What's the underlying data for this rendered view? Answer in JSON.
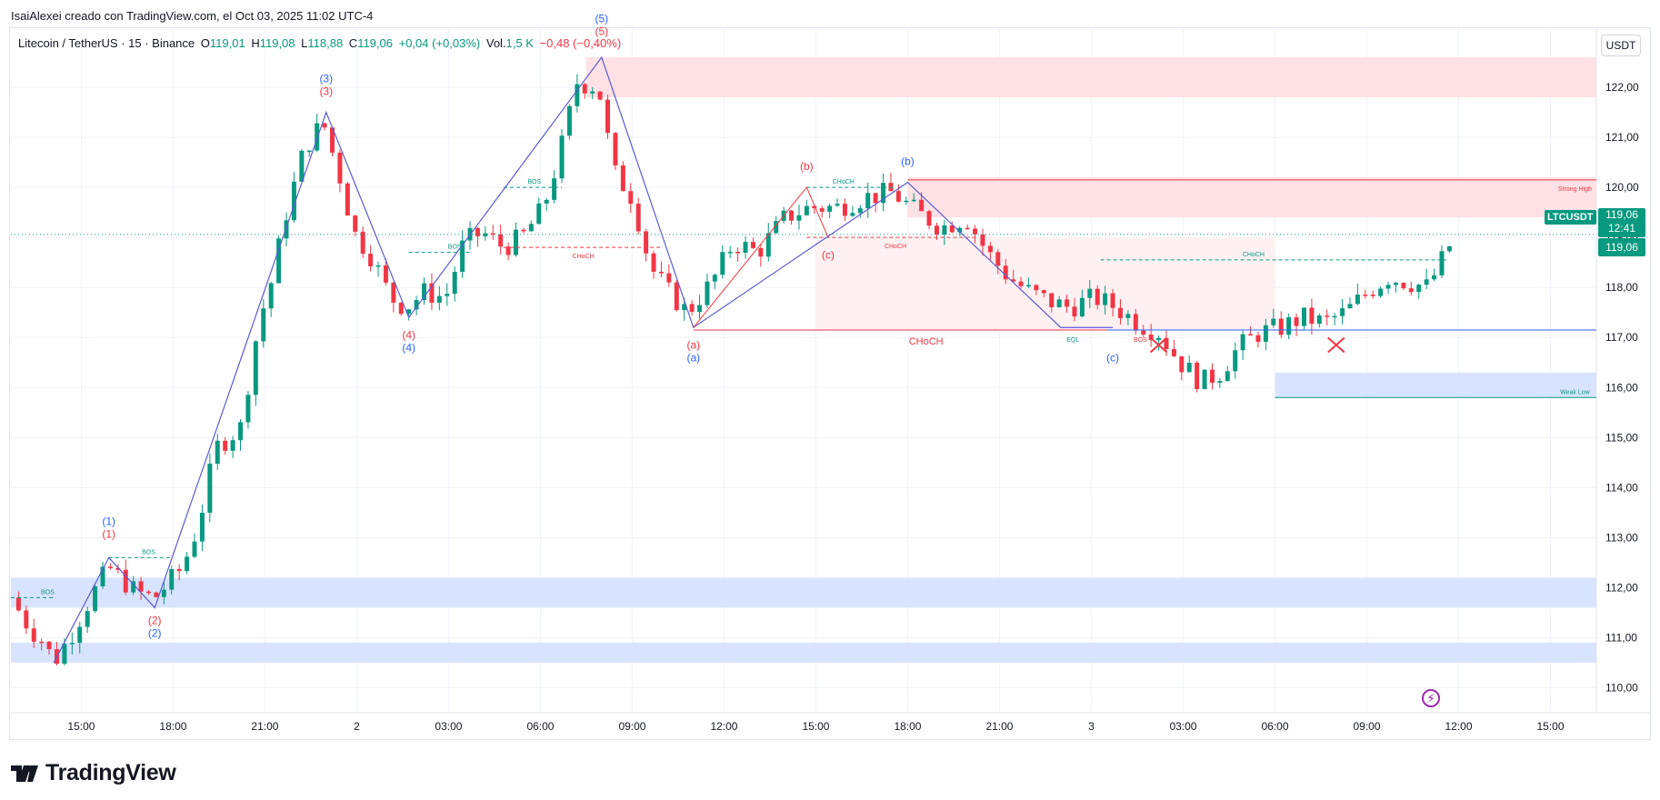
{
  "header": {
    "author_line": "IsaiAlexei creado con TradingView.com, el Oct 03, 2025 11:02 UTC-4"
  },
  "legend": {
    "symbol": "Litecoin / TetherUS · 15 · Binance",
    "o_label": "O",
    "o_value": "119,01",
    "h_label": "H",
    "h_value": "119,08",
    "l_label": "L",
    "l_value": "118,88",
    "c_label": "C",
    "c_value": "119,06",
    "change": "+0,04 (+0,03%)",
    "vol_label": "Vol.",
    "vol_value": "1,5 K",
    "extra": "−0,48 (−0,40%)"
  },
  "currency_button": "USDT",
  "price_labels": {
    "symbol_tag": "LTCUSDT",
    "last_price": "119,06",
    "countdown": "12:41",
    "line_price": "119,06"
  },
  "branding": {
    "logo_text": "TradingView"
  },
  "colors": {
    "up": "#089981",
    "down": "#f23645",
    "blue_wave": "#5b5bd6",
    "wave_blue_label": "#2962ff",
    "wave_red_label": "#f23645",
    "supply_zone": "#fde1e4",
    "demand_zone": "#d8e4ff",
    "grid": "#f0f3fa"
  },
  "chart_data": {
    "type": "candlestick",
    "symbol": "LTCUSDT",
    "timeframe": "15",
    "y_axis": {
      "ticks": [
        110,
        111,
        112,
        113,
        114,
        115,
        116,
        117,
        118,
        119,
        120,
        121,
        122
      ],
      "tick_labels": [
        "110,00",
        "111,00",
        "112,00",
        "113,00",
        "114,00",
        "115,00",
        "116,00",
        "117,00",
        "118,00",
        "119,00",
        "120,00",
        "121,00",
        "122,00"
      ],
      "range": [
        109.5,
        123.2
      ]
    },
    "x_axis": {
      "tick_labels": [
        "15:00",
        "18:00",
        "21:00",
        "2",
        "03:00",
        "06:00",
        "09:00",
        "12:00",
        "15:00",
        "18:00",
        "21:00",
        "3",
        "03:00",
        "06:00",
        "09:00",
        "12:00",
        "15:00"
      ],
      "tick_hours": [
        15,
        18,
        21,
        24,
        27,
        30,
        33,
        36,
        39,
        42,
        45,
        48,
        51,
        54,
        57,
        60,
        63
      ],
      "range_hours": [
        12.7,
        64.5
      ],
      "time_origin": "Oct 01 00:00"
    },
    "price_path": [
      {
        "t": 12.7,
        "p": 111.8
      },
      {
        "t": 13.3,
        "p": 111.2
      },
      {
        "t": 13.8,
        "p": 110.9
      },
      {
        "t": 14.1,
        "p": 110.5
      },
      {
        "t": 14.7,
        "p": 111.1
      },
      {
        "t": 15.4,
        "p": 111.9
      },
      {
        "t": 15.9,
        "p": 112.4
      },
      {
        "t": 16.8,
        "p": 111.9
      },
      {
        "t": 17.4,
        "p": 111.8
      },
      {
        "t": 18.3,
        "p": 112.4
      },
      {
        "t": 18.8,
        "p": 113.2
      },
      {
        "t": 19.4,
        "p": 114.8
      },
      {
        "t": 20.2,
        "p": 115.2
      },
      {
        "t": 20.8,
        "p": 117.3
      },
      {
        "t": 21.2,
        "p": 118.1
      },
      {
        "t": 21.7,
        "p": 119.5
      },
      {
        "t": 22.3,
        "p": 120.8
      },
      {
        "t": 22.9,
        "p": 121.3
      },
      {
        "t": 23.5,
        "p": 120.1
      },
      {
        "t": 23.9,
        "p": 119.1
      },
      {
        "t": 24.5,
        "p": 118.6
      },
      {
        "t": 25.1,
        "p": 117.8
      },
      {
        "t": 25.6,
        "p": 117.6
      },
      {
        "t": 26.2,
        "p": 117.9
      },
      {
        "t": 26.9,
        "p": 117.8
      },
      {
        "t": 27.5,
        "p": 118.9
      },
      {
        "t": 28.1,
        "p": 119.1
      },
      {
        "t": 28.8,
        "p": 118.8
      },
      {
        "t": 29.4,
        "p": 119.0
      },
      {
        "t": 30.1,
        "p": 119.6
      },
      {
        "t": 30.6,
        "p": 120.6
      },
      {
        "t": 31.2,
        "p": 122.1
      },
      {
        "t": 31.9,
        "p": 122.0
      },
      {
        "t": 32.4,
        "p": 120.3
      },
      {
        "t": 33.0,
        "p": 119.8
      },
      {
        "t": 33.6,
        "p": 118.4
      },
      {
        "t": 34.2,
        "p": 117.9
      },
      {
        "t": 34.8,
        "p": 117.5
      },
      {
        "t": 35.6,
        "p": 118.1
      },
      {
        "t": 36.3,
        "p": 118.9
      },
      {
        "t": 37.1,
        "p": 118.7
      },
      {
        "t": 38.0,
        "p": 119.4
      },
      {
        "t": 38.8,
        "p": 119.6
      },
      {
        "t": 39.7,
        "p": 119.6
      },
      {
        "t": 40.6,
        "p": 119.8
      },
      {
        "t": 41.5,
        "p": 119.9
      },
      {
        "t": 42.3,
        "p": 119.5
      },
      {
        "t": 43.1,
        "p": 119.2
      },
      {
        "t": 43.9,
        "p": 119.4
      },
      {
        "t": 44.6,
        "p": 118.7
      },
      {
        "t": 45.3,
        "p": 118.2
      },
      {
        "t": 46.0,
        "p": 117.9
      },
      {
        "t": 46.7,
        "p": 117.7
      },
      {
        "t": 47.3,
        "p": 117.6
      },
      {
        "t": 48.1,
        "p": 117.8
      },
      {
        "t": 48.8,
        "p": 117.6
      },
      {
        "t": 49.5,
        "p": 117.3
      },
      {
        "t": 50.2,
        "p": 117.1
      },
      {
        "t": 50.9,
        "p": 116.5
      },
      {
        "t": 51.6,
        "p": 116.1
      },
      {
        "t": 52.2,
        "p": 116.3
      },
      {
        "t": 52.8,
        "p": 116.8
      },
      {
        "t": 53.5,
        "p": 117.1
      },
      {
        "t": 54.2,
        "p": 117.2
      },
      {
        "t": 54.9,
        "p": 117.4
      },
      {
        "t": 55.6,
        "p": 117.3
      },
      {
        "t": 56.3,
        "p": 117.5
      },
      {
        "t": 57.0,
        "p": 117.9
      },
      {
        "t": 57.7,
        "p": 118.2
      },
      {
        "t": 58.4,
        "p": 118.1
      },
      {
        "t": 59.0,
        "p": 118.0
      },
      {
        "t": 59.5,
        "p": 118.6
      },
      {
        "t": 59.9,
        "p": 119.06
      }
    ],
    "zones": [
      {
        "kind": "supply",
        "t0": 31.5,
        "t1": 64.5,
        "p0": 121.8,
        "p1": 122.6
      },
      {
        "kind": "supply",
        "t0": 42.0,
        "t1": 64.5,
        "p0": 119.4,
        "p1": 120.2
      },
      {
        "kind": "supply-light",
        "t0": 39.0,
        "t1": 54.0,
        "p0": 117.15,
        "p1": 119.0
      },
      {
        "kind": "demand",
        "t0": 12.7,
        "t1": 64.5,
        "p0": 111.6,
        "p1": 112.2
      },
      {
        "kind": "demand",
        "t0": 12.7,
        "t1": 64.5,
        "p0": 110.5,
        "p1": 110.9
      },
      {
        "kind": "demand",
        "t0": 54.0,
        "t1": 64.5,
        "p0": 115.8,
        "p1": 116.3
      }
    ],
    "wave_blue": [
      {
        "t": 14.1,
        "p": 110.5
      },
      {
        "t": 15.9,
        "p": 112.6
      },
      {
        "t": 17.4,
        "p": 111.6
      },
      {
        "t": 23.0,
        "p": 121.5
      },
      {
        "t": 25.7,
        "p": 117.4
      },
      {
        "t": 32.0,
        "p": 122.6
      },
      {
        "t": 35.0,
        "p": 117.2
      },
      {
        "t": 42.0,
        "p": 120.1
      },
      {
        "t": 47.0,
        "p": 117.2
      },
      {
        "t": 48.7,
        "p": 117.2
      }
    ],
    "wave_red": [
      {
        "t": 35.0,
        "p": 117.2
      },
      {
        "t": 38.7,
        "p": 120.0
      },
      {
        "t": 39.4,
        "p": 119.0
      }
    ],
    "h_lines": [
      {
        "style": "dashed",
        "color": "#089981",
        "t0": 12.7,
        "t1": 14.1,
        "p": 111.8,
        "label": "BOS",
        "lt": 13.9
      },
      {
        "style": "dashed",
        "color": "#089981",
        "t0": 15.9,
        "t1": 17.9,
        "p": 112.6,
        "label": "BOS",
        "lt": 17.2
      },
      {
        "style": "dashed",
        "color": "#089981",
        "t0": 25.7,
        "t1": 27.7,
        "p": 118.7,
        "label": "BOS",
        "lt": 27.2
      },
      {
        "style": "dashed",
        "color": "#089981",
        "t0": 28.8,
        "t1": 30.7,
        "p": 120.0,
        "label": "BOS",
        "lt": 29.8
      },
      {
        "style": "dashed",
        "color": "#f23645",
        "t0": 28.8,
        "t1": 34.0,
        "p": 118.8,
        "label": "CHoCH",
        "lt": 31.4
      },
      {
        "style": "dashed",
        "color": "#089981",
        "t0": 38.7,
        "t1": 41.6,
        "p": 120.0,
        "label": "CHoCH",
        "lt": 39.9
      },
      {
        "style": "dashed",
        "color": "#f23645",
        "t0": 38.7,
        "t1": 44.3,
        "p": 119.0,
        "label": "CHoCH",
        "lt": 41.6
      },
      {
        "style": "solid",
        "color": "#f23645",
        "t0": 35.0,
        "t1": 49.5,
        "p": 117.15,
        "label": "CHoCH",
        "lt": 42.6
      },
      {
        "style": "dashed",
        "color": "#089981",
        "t0": 48.3,
        "t1": 59.6,
        "p": 118.55,
        "label": "CHoCH",
        "lt": 53.3
      },
      {
        "style": "solid",
        "color": "#2962ff",
        "t0": 48.5,
        "t1": 64.5,
        "p": 117.15,
        "label": "",
        "lt": 0
      },
      {
        "style": "solid",
        "color": "#f23645",
        "t0": 42.0,
        "t1": 64.5,
        "p": 120.15,
        "label": "Strong High",
        "lt": 63.8
      },
      {
        "style": "solid",
        "color": "#089981",
        "t0": 54.0,
        "t1": 64.5,
        "p": 115.8,
        "label": "Weak Low",
        "lt": 63.8
      }
    ],
    "wave_labels": [
      {
        "text": "(1)",
        "t": 15.9,
        "p": 112.85,
        "color": "blue",
        "pos": "above2"
      },
      {
        "text": "(1)",
        "t": 15.9,
        "p": 112.85,
        "color": "red",
        "pos": "above1"
      },
      {
        "text": "(2)",
        "t": 17.4,
        "p": 111.6,
        "color": "red",
        "pos": "below1"
      },
      {
        "text": "(2)",
        "t": 17.4,
        "p": 111.6,
        "color": "blue",
        "pos": "below2"
      },
      {
        "text": "(3)",
        "t": 23.0,
        "p": 121.7,
        "color": "blue",
        "pos": "above2"
      },
      {
        "text": "(3)",
        "t": 23.0,
        "p": 121.7,
        "color": "red",
        "pos": "above1"
      },
      {
        "text": "(4)",
        "t": 25.7,
        "p": 117.3,
        "color": "red",
        "pos": "below1"
      },
      {
        "text": "(4)",
        "t": 25.7,
        "p": 117.3,
        "color": "blue",
        "pos": "below2"
      },
      {
        "text": "(5)",
        "t": 32.0,
        "p": 122.9,
        "color": "blue",
        "pos": "above2"
      },
      {
        "text": "(5)",
        "t": 32.0,
        "p": 122.9,
        "color": "red",
        "pos": "above1"
      },
      {
        "text": "(a)",
        "t": 35.0,
        "p": 117.1,
        "color": "red",
        "pos": "below1"
      },
      {
        "text": "(a)",
        "t": 35.0,
        "p": 117.1,
        "color": "blue",
        "pos": "below2"
      },
      {
        "text": "(b)",
        "t": 38.7,
        "p": 120.2,
        "color": "red",
        "pos": "above1"
      },
      {
        "text": "(c)",
        "t": 39.4,
        "p": 118.9,
        "color": "red",
        "pos": "below1"
      },
      {
        "text": "(b)",
        "t": 42.0,
        "p": 120.3,
        "color": "blue",
        "pos": "above1"
      },
      {
        "text": "(c)",
        "t": 48.7,
        "p": 117.1,
        "color": "blue",
        "pos": "below2"
      }
    ],
    "small_labels": [
      {
        "text": "EQL",
        "t": 47.4,
        "p": 117.15,
        "color": "#089981"
      },
      {
        "text": "BOS",
        "t": 49.6,
        "p": 117.15,
        "color": "#f23645"
      }
    ],
    "x_marks": [
      {
        "t": 50.2,
        "p": 116.85
      },
      {
        "t": 56.0,
        "p": 116.85
      }
    ]
  }
}
